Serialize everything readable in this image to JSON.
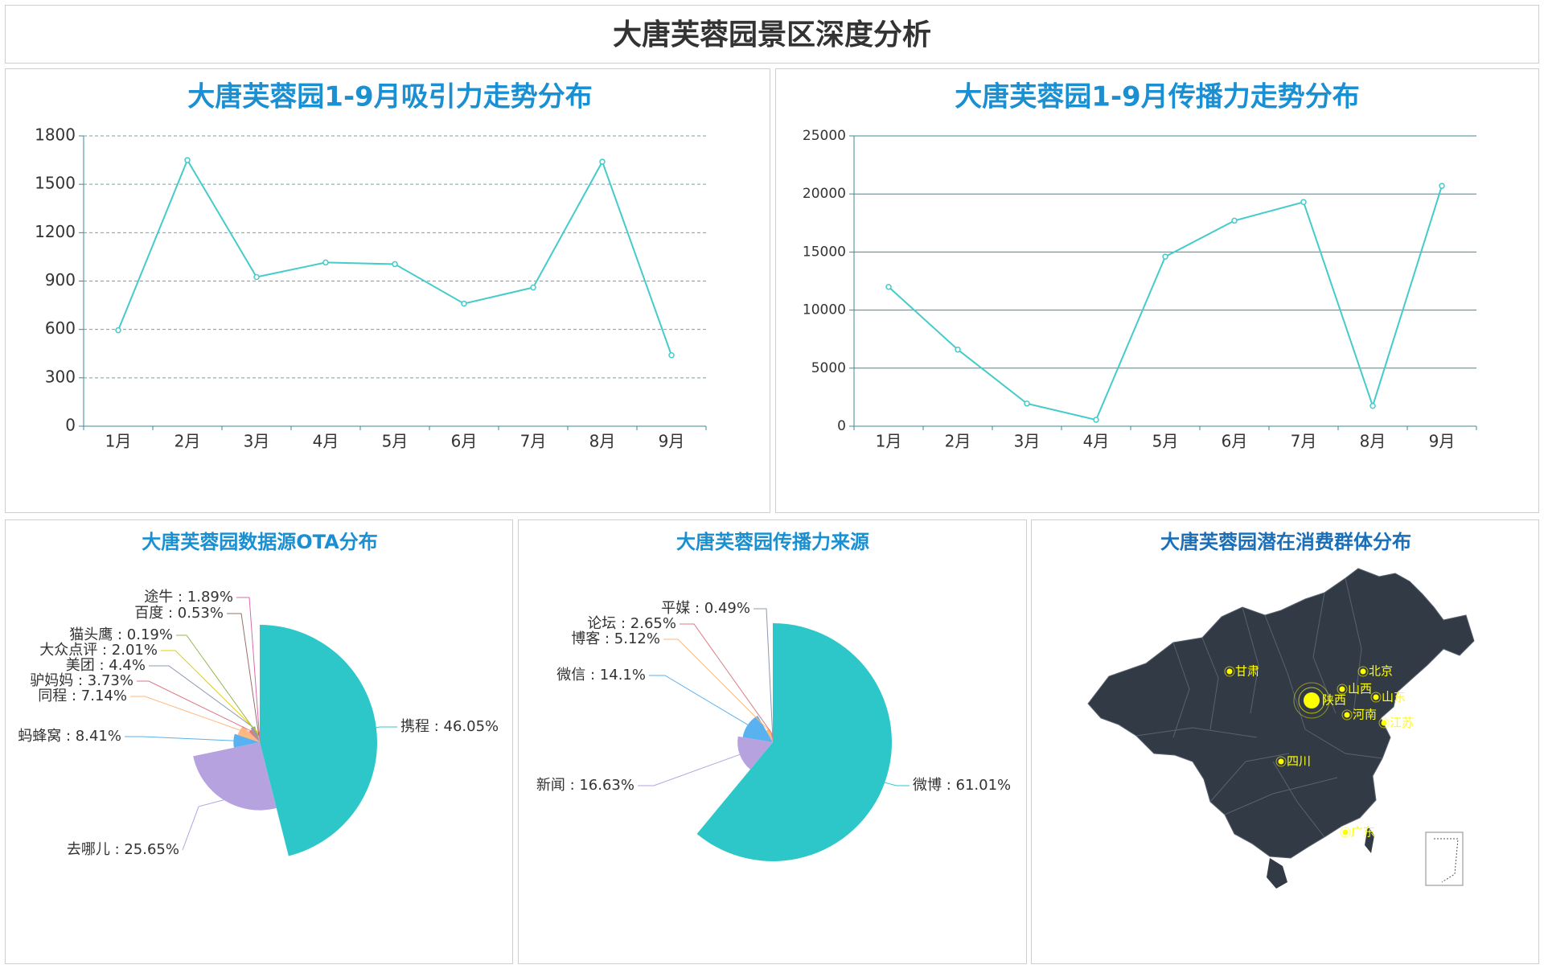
{
  "page": {
    "title": "大唐芙蓉园景区深度分析"
  },
  "chart_data": [
    {
      "id": "attraction",
      "type": "line",
      "title": "大唐芙蓉园1-9月吸引力走势分布",
      "categories": [
        "1月",
        "2月",
        "3月",
        "4月",
        "5月",
        "6月",
        "7月",
        "8月",
        "9月"
      ],
      "series": [
        {
          "values": [
            595,
            1650,
            925,
            1015,
            1005,
            760,
            860,
            1640,
            440
          ]
        }
      ],
      "ylim": [
        0,
        1800
      ],
      "yticks": [
        0,
        300,
        600,
        900,
        1200,
        1500,
        1800
      ],
      "grid": "dashed",
      "color": "#45cbcb"
    },
    {
      "id": "spread",
      "type": "line",
      "title": "大唐芙蓉园1-9月传播力走势分布",
      "categories": [
        "1月",
        "2月",
        "3月",
        "4月",
        "5月",
        "6月",
        "7月",
        "8月",
        "9月"
      ],
      "series": [
        {
          "values": [
            12000,
            6600,
            1950,
            550,
            14600,
            17700,
            19300,
            1750,
            20700
          ]
        }
      ],
      "ylim": [
        0,
        25000
      ],
      "yticks": [
        0,
        5000,
        10000,
        15000,
        20000,
        25000
      ],
      "grid": "solid",
      "color": "#45cbcb"
    },
    {
      "id": "ota",
      "type": "pie",
      "style": "rose",
      "title": "大唐芙蓉园数据源OTA分布",
      "slices": [
        {
          "name": "携程",
          "label": "携程 : 46.05%",
          "value": 46.05,
          "color": "#2ec7c9"
        },
        {
          "name": "去哪儿",
          "label": "去哪儿 : 25.65%",
          "value": 25.65,
          "color": "#b6a2de"
        },
        {
          "name": "蚂蜂窝",
          "label": "蚂蜂窝 : 8.41%",
          "value": 8.41,
          "color": "#5ab1ef"
        },
        {
          "name": "同程",
          "label": "同程 : 7.14%",
          "value": 7.14,
          "color": "#ffb980"
        },
        {
          "name": "驴妈妈",
          "label": "驴妈妈 : 3.73%",
          "value": 3.73,
          "color": "#d87a80"
        },
        {
          "name": "美团",
          "label": "美团 : 4.4%",
          "value": 4.4,
          "color": "#8d98b3"
        },
        {
          "name": "大众点评",
          "label": "大众点评 : 2.01%",
          "value": 2.01,
          "color": "#e5cf0d"
        },
        {
          "name": "猫头鹰",
          "label": "猫头鹰 : 0.19%",
          "value": 0.19,
          "color": "#97b552"
        },
        {
          "name": "百度",
          "label": "百度 : 0.53%",
          "value": 0.53,
          "color": "#95706d"
        },
        {
          "name": "途牛",
          "label": "途牛 : 1.89%",
          "value": 1.89,
          "color": "#dc69aa"
        }
      ]
    },
    {
      "id": "source",
      "type": "pie",
      "style": "rose",
      "title": "大唐芙蓉园传播力来源",
      "slices": [
        {
          "name": "微博",
          "label": "微博 : 61.01%",
          "value": 61.01,
          "color": "#2ec7c9"
        },
        {
          "name": "新闻",
          "label": "新闻 : 16.63%",
          "value": 16.63,
          "color": "#b6a2de"
        },
        {
          "name": "微信",
          "label": "微信 : 14.1%",
          "value": 14.1,
          "color": "#5ab1ef"
        },
        {
          "name": "博客",
          "label": "博客 : 5.12%",
          "value": 5.12,
          "color": "#ffb980"
        },
        {
          "name": "论坛",
          "label": "论坛 : 2.65%",
          "value": 2.65,
          "color": "#d87a80"
        },
        {
          "name": "平媒",
          "label": "平媒 : 0.49%",
          "value": 0.49,
          "color": "#8d98b3"
        }
      ]
    }
  ],
  "map": {
    "title": "大唐芙蓉园潜在消费群体分布",
    "land_color": "#323a46",
    "marker_color": "#ffff00",
    "provinces": [
      {
        "name": "甘肃",
        "highlight": false
      },
      {
        "name": "北京",
        "highlight": false
      },
      {
        "name": "山西",
        "highlight": false
      },
      {
        "name": "陕西",
        "highlight": true
      },
      {
        "name": "山东",
        "highlight": false
      },
      {
        "name": "河南",
        "highlight": false
      },
      {
        "name": "江苏",
        "highlight": false
      },
      {
        "name": "四川",
        "highlight": false
      },
      {
        "name": "广东",
        "highlight": false
      }
    ]
  }
}
